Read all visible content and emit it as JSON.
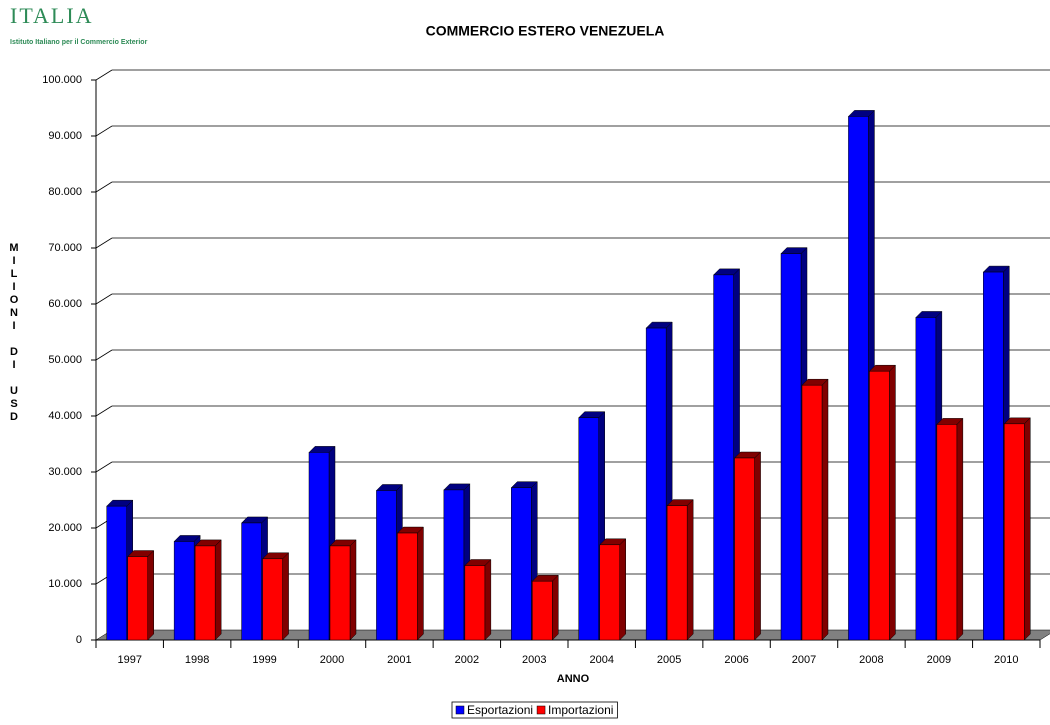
{
  "logo": {
    "name": "ITALIA",
    "subtitle": "Istituto Italiano per il Commercio Exterior"
  },
  "chart_data": {
    "type": "bar3d",
    "title": "COMMERCIO ESTERO VENEZUELA",
    "x_label": "ANNO",
    "y_label": "MILIONI DI USD",
    "categories": [
      "1997",
      "1998",
      "1999",
      "2000",
      "2001",
      "2002",
      "2003",
      "2004",
      "2005",
      "2006",
      "2007",
      "2008",
      "2009",
      "2010"
    ],
    "series": [
      {
        "name": "Esportazioni",
        "color": "#0000ff",
        "values": [
          23900,
          17600,
          20900,
          33500,
          26700,
          26800,
          27200,
          39700,
          55700,
          65200,
          69000,
          93500,
          57600,
          65700
        ]
      },
      {
        "name": "Importazioni",
        "color": "#ff0000",
        "values": [
          14900,
          16800,
          14500,
          16800,
          19100,
          13300,
          10500,
          17000,
          24000,
          32500,
          45500,
          48000,
          38500,
          38600
        ]
      }
    ],
    "ylim": [
      0,
      100000
    ],
    "yticks": [
      0,
      {
        "value": 10000,
        "label": "10.000"
      },
      {
        "value": 20000,
        "label": "20.000"
      },
      {
        "value": 30000,
        "label": "30.000"
      },
      {
        "value": 40000,
        "label": "40.000"
      },
      {
        "value": 50000,
        "label": "50.000"
      },
      {
        "value": 60000,
        "label": "60.000"
      },
      {
        "value": 70000,
        "label": "70.000"
      },
      {
        "value": 80000,
        "label": "80.000"
      },
      {
        "value": 90000,
        "label": "90.000"
      },
      {
        "value": 100000,
        "label": "100.000"
      }
    ],
    "grid": true
  }
}
